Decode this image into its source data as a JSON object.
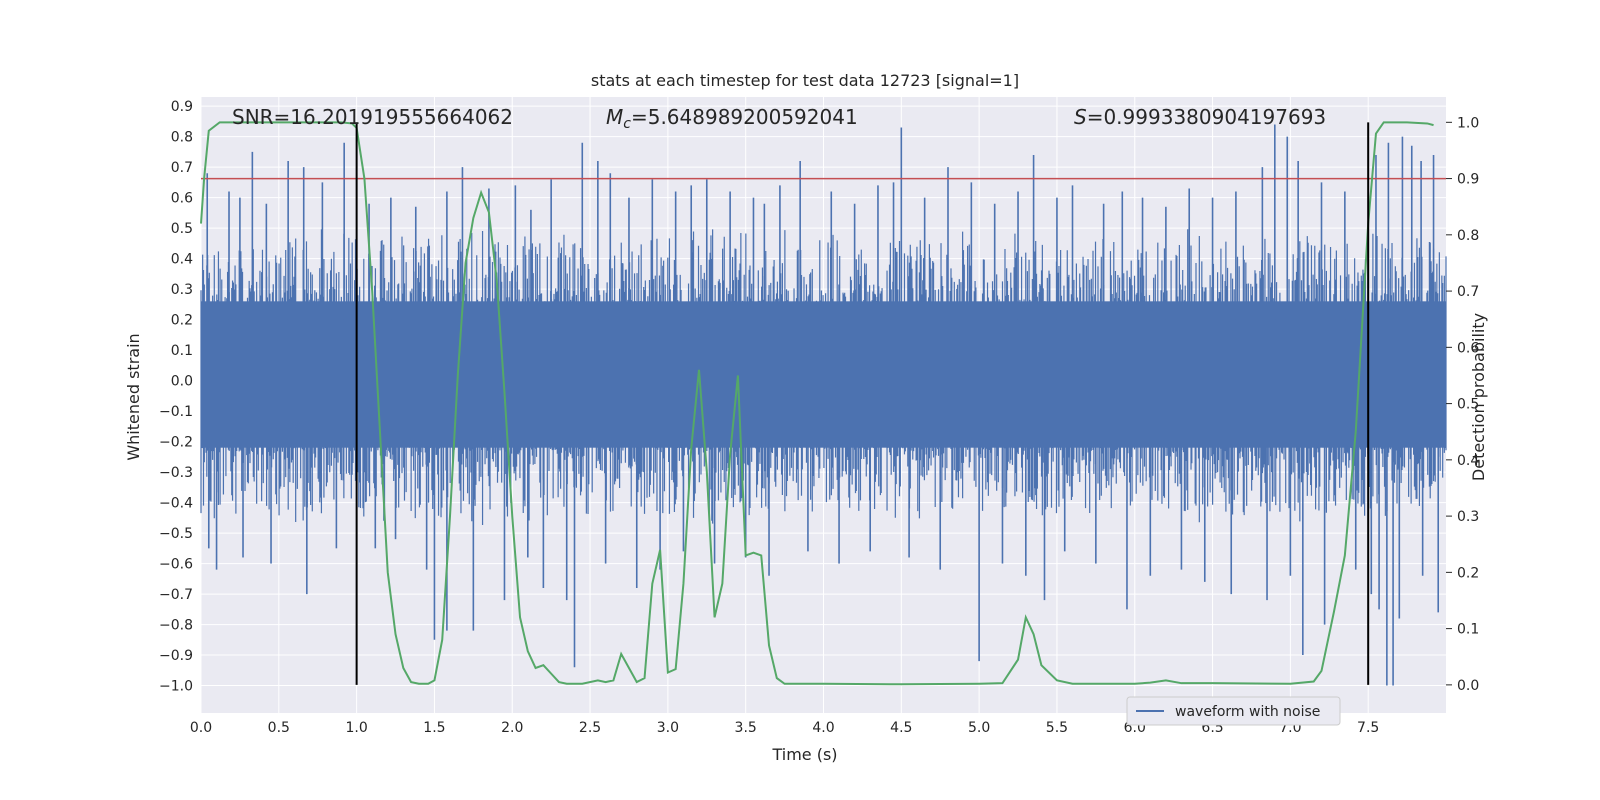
{
  "chart_data": {
    "type": "line",
    "title": "stats at each timestep for test data 12723 [signal=1]",
    "xlabel": "Time (s)",
    "ylabel": "Whitened strain",
    "y2label": "Detection probability",
    "xlim": [
      0.0,
      8.0
    ],
    "ylim": [
      -1.09,
      0.93
    ],
    "y2lim": [
      -0.05,
      1.045
    ],
    "xticks": [
      0.0,
      0.5,
      1.0,
      1.5,
      2.0,
      2.5,
      3.0,
      3.5,
      4.0,
      4.5,
      5.0,
      5.5,
      6.0,
      6.5,
      7.0,
      7.5
    ],
    "xtick_labels": [
      "0.0",
      "0.5",
      "1.0",
      "1.5",
      "2.0",
      "2.5",
      "3.0",
      "3.5",
      "4.0",
      "4.5",
      "5.0",
      "5.5",
      "6.0",
      "6.5",
      "7.0",
      "7.5"
    ],
    "yticks": [
      0.9,
      0.8,
      0.7,
      0.6,
      0.5,
      0.4,
      0.3,
      0.2,
      0.1,
      0.0,
      -0.1,
      -0.2,
      -0.3,
      -0.4,
      -0.5,
      -0.6,
      -0.7,
      -0.8,
      -0.9,
      -1.0
    ],
    "ytick_labels": [
      "0.9",
      "0.8",
      "0.7",
      "0.6",
      "0.5",
      "0.4",
      "0.3",
      "0.2",
      "0.1",
      "0.0",
      "−0.1",
      "−0.2",
      "−0.3",
      "−0.4",
      "−0.5",
      "−0.6",
      "−0.7",
      "−0.8",
      "−0.9",
      "−1.0"
    ],
    "y2ticks": [
      1.0,
      0.9,
      0.8,
      0.7,
      0.6,
      0.5,
      0.4,
      0.3,
      0.2,
      0.1,
      0.0
    ],
    "y2tick_labels": [
      "1.0",
      "0.9",
      "0.8",
      "0.7",
      "0.6",
      "0.5",
      "0.4",
      "0.3",
      "0.2",
      "0.1",
      "0.0"
    ],
    "grid": true,
    "legend_position": "bottom-right",
    "annotations": {
      "snr": "SNR=16.201919555664062",
      "mc_symbol": "M",
      "mc_sub": "c",
      "mc_value": "=5.648989200592041",
      "s_symbol": "S",
      "s_value": "=0.9993380904197693"
    },
    "waveform": {
      "name": "waveform with noise",
      "color": "#4c72b0",
      "envelope_hi": 0.36,
      "envelope_lo": -0.34,
      "spikes_up": [
        [
          0.04,
          0.68
        ],
        [
          0.18,
          0.62
        ],
        [
          0.25,
          0.6
        ],
        [
          0.33,
          0.75
        ],
        [
          0.42,
          0.58
        ],
        [
          0.56,
          0.72
        ],
        [
          0.66,
          0.7
        ],
        [
          0.78,
          0.65
        ],
        [
          0.92,
          0.78
        ],
        [
          1.08,
          0.58
        ],
        [
          1.22,
          0.6
        ],
        [
          1.38,
          0.57
        ],
        [
          1.58,
          0.62
        ],
        [
          1.68,
          0.7
        ],
        [
          1.85,
          0.63
        ],
        [
          2.02,
          0.64
        ],
        [
          2.12,
          0.56
        ],
        [
          2.25,
          0.66
        ],
        [
          2.45,
          0.78
        ],
        [
          2.55,
          0.72
        ],
        [
          2.63,
          0.68
        ],
        [
          2.75,
          0.6
        ],
        [
          2.9,
          0.66
        ],
        [
          3.05,
          0.62
        ],
        [
          3.15,
          0.64
        ],
        [
          3.25,
          0.66
        ],
        [
          3.4,
          0.62
        ],
        [
          3.55,
          0.6
        ],
        [
          3.62,
          0.58
        ],
        [
          3.72,
          0.64
        ],
        [
          3.85,
          0.72
        ],
        [
          4.05,
          0.62
        ],
        [
          4.2,
          0.58
        ],
        [
          4.35,
          0.64
        ],
        [
          4.45,
          0.65
        ],
        [
          4.5,
          0.83
        ],
        [
          4.65,
          0.6
        ],
        [
          4.8,
          0.7
        ],
        [
          4.95,
          0.65
        ],
        [
          5.1,
          0.58
        ],
        [
          5.25,
          0.62
        ],
        [
          5.35,
          0.74
        ],
        [
          5.5,
          0.6
        ],
        [
          5.6,
          0.64
        ],
        [
          5.8,
          0.58
        ],
        [
          5.92,
          0.62
        ],
        [
          6.05,
          0.6
        ],
        [
          6.2,
          0.57
        ],
        [
          6.35,
          0.63
        ],
        [
          6.5,
          0.6
        ],
        [
          6.65,
          0.62
        ],
        [
          6.82,
          0.7
        ],
        [
          6.9,
          0.84
        ],
        [
          6.98,
          0.8
        ],
        [
          7.05,
          0.72
        ],
        [
          7.2,
          0.65
        ],
        [
          7.35,
          0.62
        ],
        [
          7.55,
          0.74
        ],
        [
          7.63,
          0.78
        ],
        [
          7.72,
          0.8
        ],
        [
          7.78,
          0.77
        ],
        [
          7.84,
          0.72
        ],
        [
          7.92,
          0.74
        ]
      ],
      "spikes_down": [
        [
          0.05,
          -0.55
        ],
        [
          0.1,
          -0.62
        ],
        [
          0.27,
          -0.58
        ],
        [
          0.45,
          -0.6
        ],
        [
          0.68,
          -0.7
        ],
        [
          0.87,
          -0.55
        ],
        [
          1.12,
          -0.55
        ],
        [
          1.25,
          -0.52
        ],
        [
          1.45,
          -0.62
        ],
        [
          1.5,
          -0.85
        ],
        [
          1.58,
          -0.82
        ],
        [
          1.75,
          -0.82
        ],
        [
          1.95,
          -0.72
        ],
        [
          2.1,
          -0.58
        ],
        [
          2.2,
          -0.68
        ],
        [
          2.35,
          -0.72
        ],
        [
          2.4,
          -0.94
        ],
        [
          2.6,
          -0.6
        ],
        [
          2.8,
          -0.68
        ],
        [
          2.95,
          -0.62
        ],
        [
          3.1,
          -0.56
        ],
        [
          3.3,
          -0.6
        ],
        [
          3.5,
          -0.58
        ],
        [
          3.65,
          -0.64
        ],
        [
          3.9,
          -0.56
        ],
        [
          4.1,
          -0.6
        ],
        [
          4.3,
          -0.56
        ],
        [
          4.55,
          -0.58
        ],
        [
          4.75,
          -0.62
        ],
        [
          5.0,
          -0.92
        ],
        [
          5.15,
          -0.6
        ],
        [
          5.3,
          -0.64
        ],
        [
          5.42,
          -0.72
        ],
        [
          5.55,
          -0.56
        ],
        [
          5.75,
          -0.6
        ],
        [
          5.95,
          -0.75
        ],
        [
          6.1,
          -0.64
        ],
        [
          6.3,
          -0.62
        ],
        [
          6.45,
          -0.66
        ],
        [
          6.62,
          -0.7
        ],
        [
          6.85,
          -0.72
        ],
        [
          7.0,
          -0.64
        ],
        [
          7.08,
          -0.9
        ],
        [
          7.22,
          -0.8
        ],
        [
          7.42,
          -0.62
        ],
        [
          7.52,
          -0.7
        ],
        [
          7.57,
          -0.75
        ],
        [
          7.62,
          -1.0
        ],
        [
          7.66,
          -1.0
        ],
        [
          7.7,
          -0.78
        ],
        [
          7.85,
          -0.64
        ],
        [
          7.95,
          -0.76
        ]
      ]
    },
    "threshold_line": {
      "value": 0.9,
      "color": "#c44e52"
    },
    "probability_line": {
      "color": "#55a868",
      "points": [
        [
          0.0,
          0.82
        ],
        [
          0.02,
          0.9
        ],
        [
          0.05,
          0.985
        ],
        [
          0.12,
          1.0
        ],
        [
          0.3,
          1.0
        ],
        [
          0.6,
          1.0
        ],
        [
          0.9,
          1.0
        ],
        [
          0.97,
          0.998
        ],
        [
          1.0,
          0.99
        ],
        [
          1.05,
          0.9
        ],
        [
          1.1,
          0.7
        ],
        [
          1.15,
          0.45
        ],
        [
          1.2,
          0.2
        ],
        [
          1.25,
          0.09
        ],
        [
          1.3,
          0.03
        ],
        [
          1.35,
          0.005
        ],
        [
          1.4,
          0.002
        ],
        [
          1.46,
          0.002
        ],
        [
          1.5,
          0.008
        ],
        [
          1.55,
          0.08
        ],
        [
          1.6,
          0.3
        ],
        [
          1.65,
          0.55
        ],
        [
          1.7,
          0.75
        ],
        [
          1.75,
          0.83
        ],
        [
          1.8,
          0.875
        ],
        [
          1.85,
          0.84
        ],
        [
          1.9,
          0.72
        ],
        [
          1.95,
          0.52
        ],
        [
          2.0,
          0.3
        ],
        [
          2.05,
          0.12
        ],
        [
          2.1,
          0.06
        ],
        [
          2.15,
          0.03
        ],
        [
          2.2,
          0.035
        ],
        [
          2.25,
          0.02
        ],
        [
          2.3,
          0.005
        ],
        [
          2.35,
          0.002
        ],
        [
          2.45,
          0.002
        ],
        [
          2.55,
          0.008
        ],
        [
          2.6,
          0.005
        ],
        [
          2.65,
          0.008
        ],
        [
          2.7,
          0.055
        ],
        [
          2.75,
          0.03
        ],
        [
          2.8,
          0.005
        ],
        [
          2.85,
          0.012
        ],
        [
          2.9,
          0.18
        ],
        [
          2.95,
          0.24
        ],
        [
          3.0,
          0.022
        ],
        [
          3.05,
          0.028
        ],
        [
          3.1,
          0.18
        ],
        [
          3.15,
          0.42
        ],
        [
          3.2,
          0.56
        ],
        [
          3.25,
          0.38
        ],
        [
          3.3,
          0.12
        ],
        [
          3.35,
          0.18
        ],
        [
          3.4,
          0.41
        ],
        [
          3.45,
          0.55
        ],
        [
          3.5,
          0.23
        ],
        [
          3.55,
          0.235
        ],
        [
          3.6,
          0.23
        ],
        [
          3.65,
          0.07
        ],
        [
          3.7,
          0.012
        ],
        [
          3.75,
          0.002
        ],
        [
          4.0,
          0.002
        ],
        [
          4.5,
          0.001
        ],
        [
          5.0,
          0.002
        ],
        [
          5.15,
          0.003
        ],
        [
          5.25,
          0.045
        ],
        [
          5.3,
          0.12
        ],
        [
          5.35,
          0.09
        ],
        [
          5.4,
          0.035
        ],
        [
          5.5,
          0.008
        ],
        [
          5.6,
          0.002
        ],
        [
          6.0,
          0.002
        ],
        [
          6.1,
          0.004
        ],
        [
          6.2,
          0.008
        ],
        [
          6.3,
          0.003
        ],
        [
          6.5,
          0.003
        ],
        [
          7.0,
          0.002
        ],
        [
          7.15,
          0.006
        ],
        [
          7.2,
          0.025
        ],
        [
          7.28,
          0.13
        ],
        [
          7.35,
          0.23
        ],
        [
          7.42,
          0.45
        ],
        [
          7.5,
          0.82
        ],
        [
          7.55,
          0.98
        ],
        [
          7.6,
          1.0
        ],
        [
          7.75,
          1.0
        ],
        [
          7.88,
          0.998
        ],
        [
          7.92,
          0.995
        ]
      ]
    },
    "markers": [
      {
        "x": 1.0,
        "color": "#000000"
      },
      {
        "x": 7.5,
        "color": "#000000"
      }
    ]
  }
}
